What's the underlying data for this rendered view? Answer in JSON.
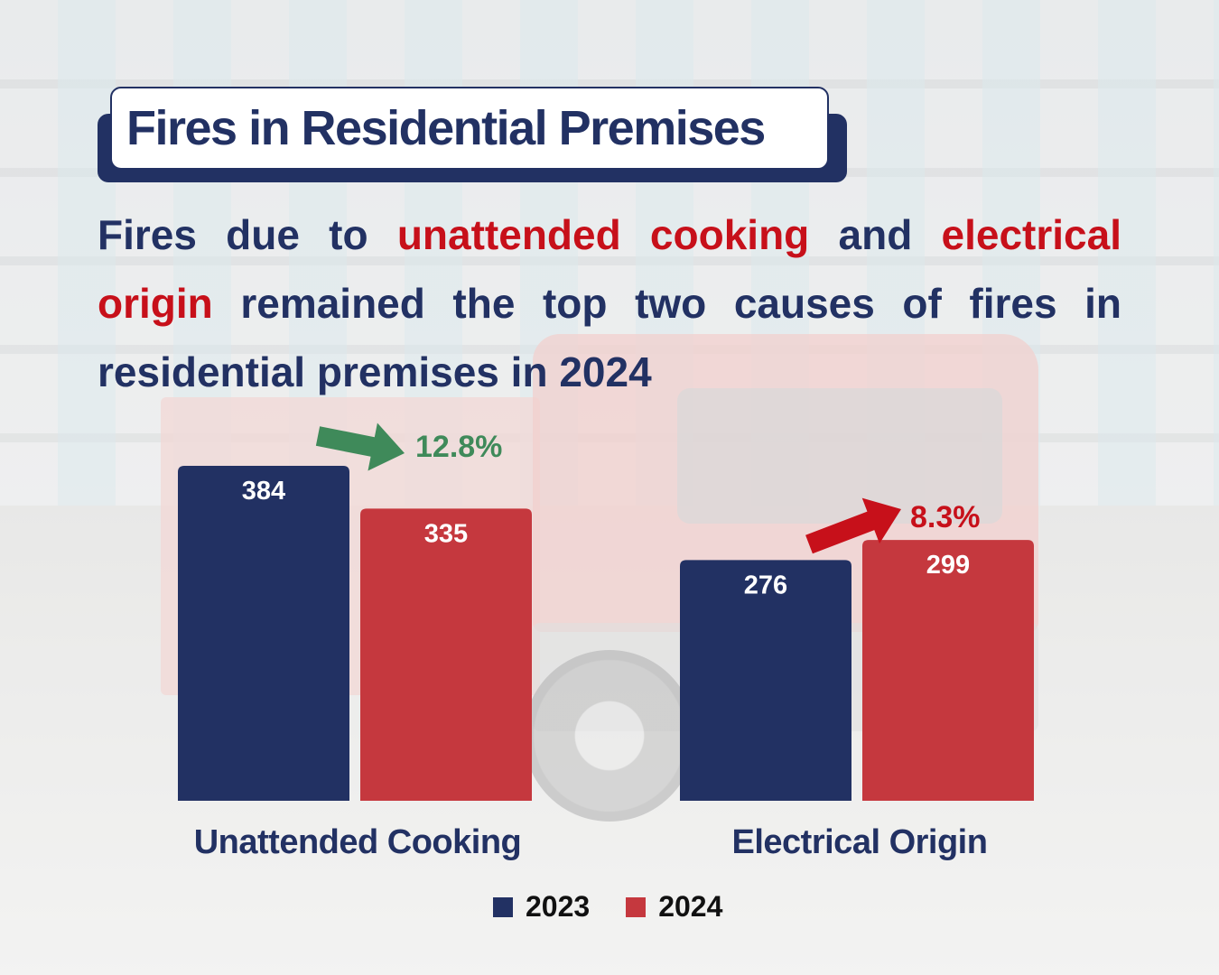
{
  "title": "Fires in Residential Premises",
  "subtitle": {
    "part1": "Fires due to ",
    "highlight1": "unattended cooking",
    "part2": " and ",
    "highlight2": "electrical origin",
    "part3": " remained the top two causes of fires in residential premises in 2024"
  },
  "colors": {
    "navy": "#223163",
    "red": "#c5383e",
    "highlight_red": "#c7101a",
    "decrease_green": "#3f8a5a",
    "increase_red": "#c7101a"
  },
  "chart_data": {
    "type": "bar",
    "categories": [
      "Unattended Cooking",
      "Electrical Origin"
    ],
    "series": [
      {
        "name": "2023",
        "values": [
          384,
          276
        ],
        "color": "#223163"
      },
      {
        "name": "2024",
        "values": [
          335,
          299
        ],
        "color": "#c5383e"
      }
    ],
    "value_labels": [
      [
        "384",
        "335"
      ],
      [
        "276",
        "299"
      ]
    ],
    "annotations": [
      {
        "category": "Unattended Cooking",
        "label": "12.8%",
        "direction": "decrease",
        "color": "#3f8a5a"
      },
      {
        "category": "Electrical Origin",
        "label": "8.3%",
        "direction": "increase",
        "color": "#c7101a"
      }
    ],
    "title": "",
    "xlabel": "",
    "ylabel": "",
    "ylim": [
      0,
      384
    ],
    "grid": false,
    "legend": "bottom-center",
    "legend_labels": [
      "2023",
      "2024"
    ]
  }
}
